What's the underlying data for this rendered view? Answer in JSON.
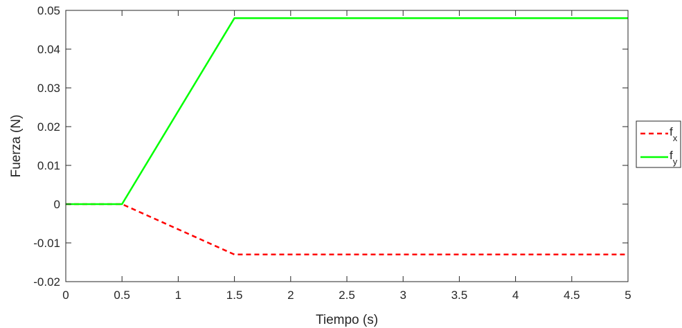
{
  "chart_data": {
    "type": "line",
    "xlabel": "Tiempo (s)",
    "ylabel": "Fuerza (N)",
    "xlim": [
      0,
      5
    ],
    "ylim": [
      -0.02,
      0.05
    ],
    "x_ticks": [
      0,
      0.5,
      1,
      1.5,
      2,
      2.5,
      3,
      3.5,
      4,
      4.5,
      5
    ],
    "x_tick_labels": [
      "0",
      "0.5",
      "1",
      "1.5",
      "2",
      "2.5",
      "3",
      "3.5",
      "4",
      "4.5",
      "5"
    ],
    "y_ticks": [
      -0.02,
      -0.01,
      0,
      0.01,
      0.02,
      0.03,
      0.04,
      0.05
    ],
    "y_tick_labels": [
      "-0.02",
      "-0.01",
      "0",
      "0.01",
      "0.02",
      "0.03",
      "0.04",
      "0.05"
    ],
    "grid": false,
    "legend_position": "outside-right",
    "series": [
      {
        "name": "f_x",
        "legend_base": "f",
        "legend_sub": "x",
        "color": "#ff0000",
        "style": "dashed",
        "x": [
          0,
          0.5,
          1.5,
          5
        ],
        "y": [
          0,
          0,
          -0.013,
          -0.013
        ]
      },
      {
        "name": "f_y",
        "legend_base": "f",
        "legend_sub": "y",
        "color": "#00ff00",
        "style": "solid",
        "x": [
          0,
          0.5,
          1.5,
          5
        ],
        "y": [
          0,
          0,
          0.048,
          0.048
        ]
      }
    ]
  }
}
